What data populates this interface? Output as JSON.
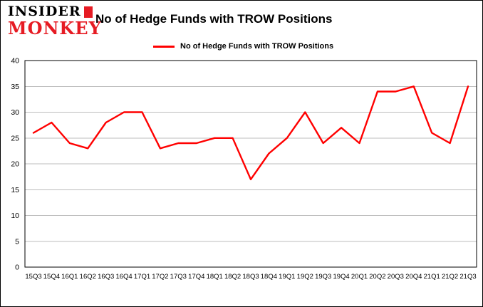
{
  "header": {
    "logo_line1": "INSIDER",
    "logo_line2": "MONKEY",
    "title": "No of Hedge Funds with TROW Positions"
  },
  "legend": {
    "label": "No of Hedge Funds with TROW Positions"
  },
  "colors": {
    "series_red": "#ff0000",
    "logo_red": "#e61b23",
    "gridline_gray": "#bdbdbd",
    "axis_black": "#000000"
  },
  "chart_data": {
    "type": "line",
    "title": "No of Hedge Funds with TROW Positions",
    "categories": [
      "15Q3",
      "15Q4",
      "16Q1",
      "16Q2",
      "16Q3",
      "16Q4",
      "17Q1",
      "17Q2",
      "17Q3",
      "17Q4",
      "18Q1",
      "18Q2",
      "18Q3",
      "18Q4",
      "19Q1",
      "19Q2",
      "19Q3",
      "19Q4",
      "20Q1",
      "20Q2",
      "20Q3",
      "20Q4",
      "21Q1",
      "21Q2",
      "21Q3"
    ],
    "values": [
      26,
      28,
      24,
      23,
      28,
      30,
      30,
      23,
      24,
      24,
      25,
      25,
      17,
      22,
      25,
      30,
      24,
      27,
      24,
      34,
      34,
      35,
      26,
      24,
      35
    ],
    "series_name": "No of Hedge Funds with TROW Positions",
    "xlabel": "",
    "ylabel": "",
    "ylim": [
      0,
      40
    ],
    "ytick_step": 5,
    "grid": true,
    "legend_position": "top",
    "line_color": "#ff0000"
  }
}
